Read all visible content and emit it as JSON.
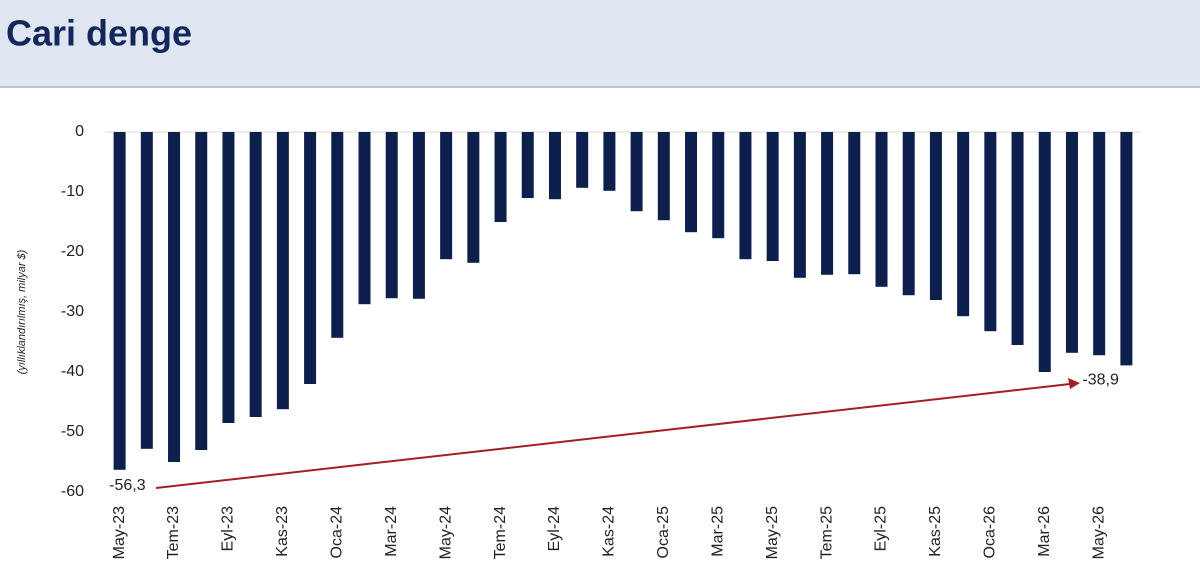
{
  "chart_data": {
    "type": "bar",
    "title": "Cari denge",
    "y_label": "(yıllıklandırılmış, milyar $)",
    "categories": [
      "May-23",
      null,
      "Tem-23",
      null,
      "Eyl-23",
      null,
      "Kas-23",
      null,
      "Oca-24",
      null,
      "Mar-24",
      null,
      "May-24",
      null,
      "Tem-24",
      null,
      "Eyl-24",
      null,
      "Kas-24",
      null,
      "Oca-25",
      null,
      "Mar-25",
      null,
      "May-25",
      null,
      "Tem-25",
      null,
      "Eyl-25",
      null,
      "Kas-25",
      null,
      "Oca-26",
      null,
      "Mar-26",
      null,
      "May-26",
      null
    ],
    "values": [
      -56.3,
      -52.8,
      -55,
      -53,
      -48.5,
      -47.5,
      -46.2,
      -42,
      -34.3,
      -28.7,
      -27.7,
      -27.8,
      -21.2,
      -21.8,
      -15,
      -11,
      -11.2,
      -9.3,
      -9.8,
      -13.2,
      -14.7,
      -16.7,
      -17.7,
      -21.2,
      -21.5,
      -24.3,
      -23.8,
      -23.7,
      -25.8,
      -27.2,
      -28,
      -30.7,
      -33.2,
      -35.5,
      -40,
      -36.8,
      -37.2,
      -38.9
    ],
    "value_labels": [
      "-56,3",
      null,
      null,
      null,
      null,
      null,
      null,
      null,
      null,
      null,
      null,
      null,
      null,
      null,
      null,
      null,
      null,
      null,
      null,
      null,
      null,
      null,
      null,
      null,
      null,
      null,
      null,
      null,
      null,
      null,
      null,
      null,
      null,
      null,
      null,
      null,
      null,
      "-38,9"
    ],
    "color": "#0d1f4d",
    "ylim": [
      -60,
      0
    ],
    "yticks": [
      0,
      -10,
      -20,
      -30,
      -40,
      -50,
      -60
    ],
    "grid": false
  }
}
